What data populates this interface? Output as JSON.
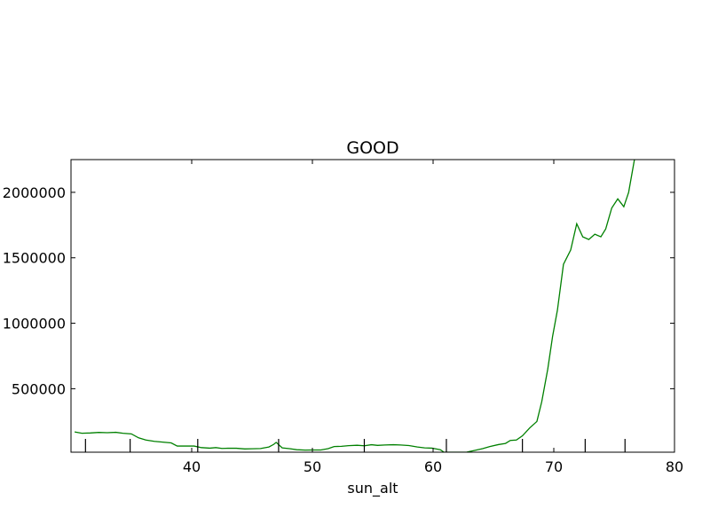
{
  "chart_data": {
    "type": "line",
    "title": "GOOD",
    "xlabel": "sun_alt",
    "ylabel": "",
    "xlim": [
      30,
      80
    ],
    "ylim": [
      15000,
      2250000
    ],
    "grid": false,
    "xticks": [
      40,
      50,
      60,
      70,
      80
    ],
    "xtick_labels": [
      "40",
      "50",
      "60",
      "70",
      "80"
    ],
    "yticks": [
      500000,
      1000000,
      1500000,
      2000000
    ],
    "ytick_labels": [
      "500000",
      "1000000",
      "1500000",
      "2000000"
    ],
    "rug_x": [
      31.2,
      34.9,
      40.5,
      47.2,
      54.3,
      61.1,
      67.4,
      72.6,
      75.9
    ],
    "series": [
      {
        "color": "#008000",
        "x": [
          30.3,
          30.9,
          31.6,
          32.3,
          33.0,
          33.7,
          34.3,
          35.0,
          35.6,
          36.2,
          36.9,
          37.6,
          38.3,
          38.8,
          39.5,
          40.2,
          40.8,
          41.5,
          42.0,
          42.5,
          43.0,
          43.7,
          44.4,
          45.0,
          45.7,
          46.4,
          46.8,
          47.0,
          47.5,
          48.1,
          48.7,
          49.4,
          50.0,
          50.7,
          51.3,
          51.8,
          52.4,
          53.0,
          53.7,
          54.3,
          54.9,
          55.4,
          56.0,
          56.7,
          57.3,
          58.0,
          58.7,
          59.3,
          59.9,
          60.6,
          60.9,
          61.4,
          62.1,
          62.8,
          63.4,
          64.1,
          64.7,
          65.4,
          66.0,
          66.4,
          66.9,
          67.4,
          68.0,
          68.6,
          69.0,
          69.5,
          69.9,
          70.3,
          70.8,
          71.4,
          71.9,
          72.4,
          72.9,
          73.4,
          73.9,
          74.3,
          74.8,
          75.3,
          75.8,
          76.2,
          76.7
        ],
        "y": [
          170000,
          160000,
          162000,
          166000,
          164000,
          167000,
          160000,
          155000,
          125000,
          108000,
          98000,
          92000,
          86000,
          62000,
          62000,
          62000,
          50000,
          46000,
          50000,
          44000,
          45000,
          45000,
          40000,
          41000,
          43000,
          55000,
          75000,
          90000,
          48000,
          42000,
          34000,
          31000,
          32000,
          32000,
          42000,
          58000,
          60000,
          65000,
          68000,
          64000,
          72000,
          67000,
          70000,
          72000,
          70000,
          66000,
          55000,
          48000,
          46000,
          34000,
          15000,
          15000,
          15000,
          16000,
          28000,
          42000,
          58000,
          73000,
          82000,
          105000,
          108000,
          140000,
          200000,
          250000,
          400000,
          650000,
          900000,
          1100000,
          1450000,
          1560000,
          1760000,
          1660000,
          1640000,
          1680000,
          1660000,
          1720000,
          1880000,
          1950000,
          1890000,
          2000000,
          2260000
        ]
      }
    ]
  }
}
